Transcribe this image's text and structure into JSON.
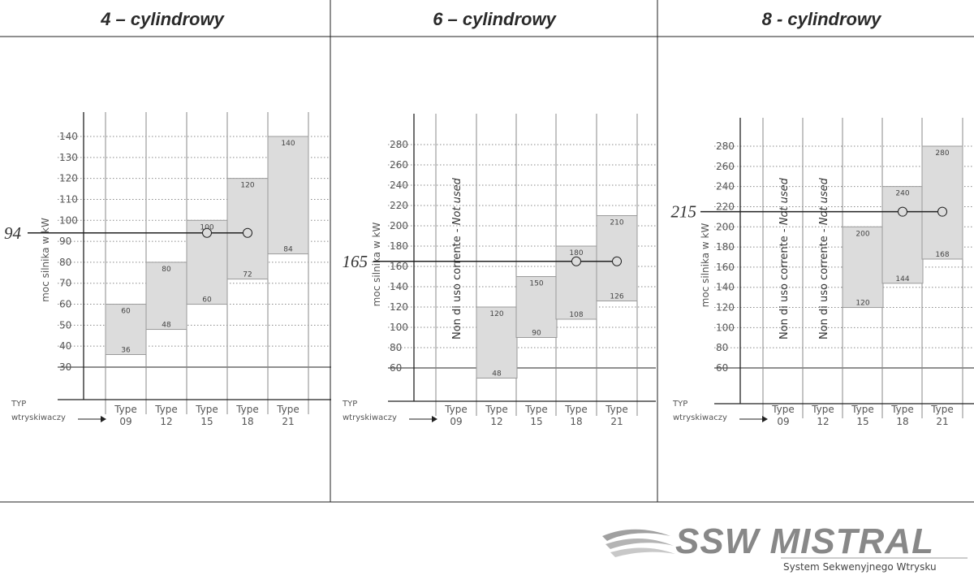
{
  "chart_data": [
    {
      "type": "bar",
      "title": "4 – cylindrowy",
      "ylabel": "moc silnika w kW",
      "xlabel": "TYP wtryskiwaczy",
      "ylim": [
        25,
        150
      ],
      "yticks": [
        30,
        40,
        50,
        60,
        70,
        80,
        90,
        100,
        110,
        120,
        130,
        140
      ],
      "categories": [
        "Type 09",
        "Type 12",
        "Type 15",
        "Type 18",
        "Type 21"
      ],
      "ranges": [
        {
          "category": "Type 09",
          "low": 36,
          "high": 60
        },
        {
          "category": "Type 12",
          "low": 48,
          "high": 80
        },
        {
          "category": "Type 15",
          "low": 60,
          "high": 100
        },
        {
          "category": "Type 18",
          "low": 72,
          "high": 120
        },
        {
          "category": "Type 21",
          "low": 84,
          "high": 140
        }
      ],
      "reference": {
        "value": 94,
        "label": "94",
        "marked_categories": [
          "Type 15",
          "Type 18"
        ]
      },
      "not_used": [],
      "grid": true
    },
    {
      "type": "bar",
      "title": "6 – cylindrowy",
      "ylabel": "moc silnika w kW",
      "xlabel": "TYP wtryskiwaczy",
      "ylim": [
        50,
        290
      ],
      "yticks": [
        60,
        80,
        100,
        120,
        140,
        160,
        180,
        200,
        220,
        240,
        260,
        280
      ],
      "categories": [
        "Type 09",
        "Type 12",
        "Type 15",
        "Type 18",
        "Type 21"
      ],
      "ranges": [
        {
          "category": "Type 12",
          "low": 48,
          "high": 120
        },
        {
          "category": "Type 15",
          "low": 90,
          "high": 150
        },
        {
          "category": "Type 18",
          "low": 108,
          "high": 180
        },
        {
          "category": "Type 21",
          "low": 126,
          "high": 210
        }
      ],
      "reference": {
        "value": 165,
        "label": "165",
        "marked_categories": [
          "Type 18",
          "Type 21"
        ]
      },
      "not_used": [
        {
          "category": "Type 09",
          "text": "Non di uso corrente - ",
          "text_italic": "Not used"
        }
      ],
      "grid": true
    },
    {
      "type": "bar",
      "title": "8 - cylindrowy",
      "ylabel": "moc silnika w kW",
      "xlabel": "TYP wtryskiwaczy",
      "ylim": [
        50,
        290
      ],
      "yticks": [
        60,
        80,
        100,
        120,
        140,
        160,
        180,
        200,
        220,
        240,
        260,
        280
      ],
      "categories": [
        "Type 09",
        "Type 12",
        "Type 15",
        "Type 18",
        "Type 21"
      ],
      "ranges": [
        {
          "category": "Type 15",
          "low": 120,
          "high": 200
        },
        {
          "category": "Type 18",
          "low": 144,
          "high": 240
        },
        {
          "category": "Type 21",
          "low": 168,
          "high": 280
        }
      ],
      "reference": {
        "value": 215,
        "label": "215",
        "marked_categories": [
          "Type 18",
          "Type 21"
        ]
      },
      "not_used": [
        {
          "category": "Type 09",
          "text": "Non di uso corrente - ",
          "text_italic": "Not used"
        },
        {
          "category": "Type 12",
          "text": "Non di uso corrente - ",
          "text_italic": "Not used"
        }
      ],
      "grid": true
    }
  ],
  "colors": {
    "bar_fill": "#dcdcdc",
    "bar_stroke": "#9a9a9a",
    "axis": "#222222",
    "grid": "#8a8a8a",
    "logo": "#8c8c8c"
  },
  "logo": {
    "brand": "SSW MISTRAL",
    "tagline": "System Sekwenyjnego Wtrysku"
  }
}
